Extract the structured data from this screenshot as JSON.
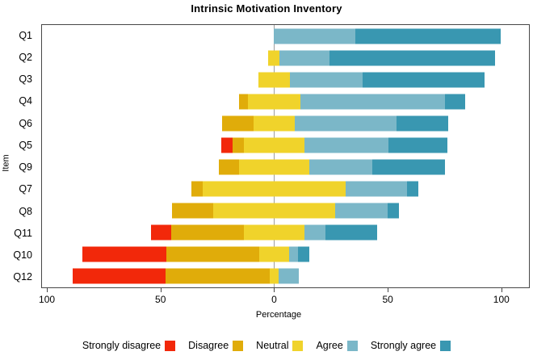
{
  "chart_data": {
    "type": "bar",
    "variant": "diverging-stacked-likert",
    "title": "Intrinsic Motivation Inventory",
    "xlabel": "Percentage",
    "ylabel": "Item",
    "categories": [
      "Q1",
      "Q2",
      "Q3",
      "Q4",
      "Q6",
      "Q5",
      "Q9",
      "Q7",
      "Q8",
      "Q11",
      "Q10",
      "Q12"
    ],
    "series": [
      {
        "name": "Strongly disagree",
        "color": "#F2280A",
        "values": [
          0,
          0,
          0,
          0,
          0,
          5,
          0,
          0,
          0,
          9,
          37,
          41
        ]
      },
      {
        "name": "Disagree",
        "color": "#E0AC0A",
        "values": [
          0,
          0,
          0,
          4,
          14,
          5,
          9,
          5,
          18,
          32,
          41,
          46
        ]
      },
      {
        "name": "Neutral",
        "color": "#F0D32B",
        "values": [
          0,
          5,
          14,
          23,
          18,
          27,
          31,
          63,
          54,
          27,
          13,
          4
        ]
      },
      {
        "name": "Agree",
        "color": "#7BB7C8",
        "values": [
          36,
          22,
          32,
          64,
          45,
          37,
          28,
          27,
          23,
          9,
          4,
          9
        ]
      },
      {
        "name": "Strongly agree",
        "color": "#3997B1",
        "values": [
          64,
          73,
          54,
          9,
          23,
          26,
          32,
          5,
          5,
          23,
          5,
          0
        ]
      }
    ],
    "neutral_centered_on_zero": true,
    "xlim": [
      -102.5,
      112.5
    ],
    "x_ticks": [
      {
        "value": -100,
        "label": "100"
      },
      {
        "value": -50,
        "label": "50"
      },
      {
        "value": 0,
        "label": "0"
      },
      {
        "value": 50,
        "label": "50"
      },
      {
        "value": 100,
        "label": "100"
      }
    ],
    "grid": "zero-line-only",
    "legend_position": "bottom"
  }
}
